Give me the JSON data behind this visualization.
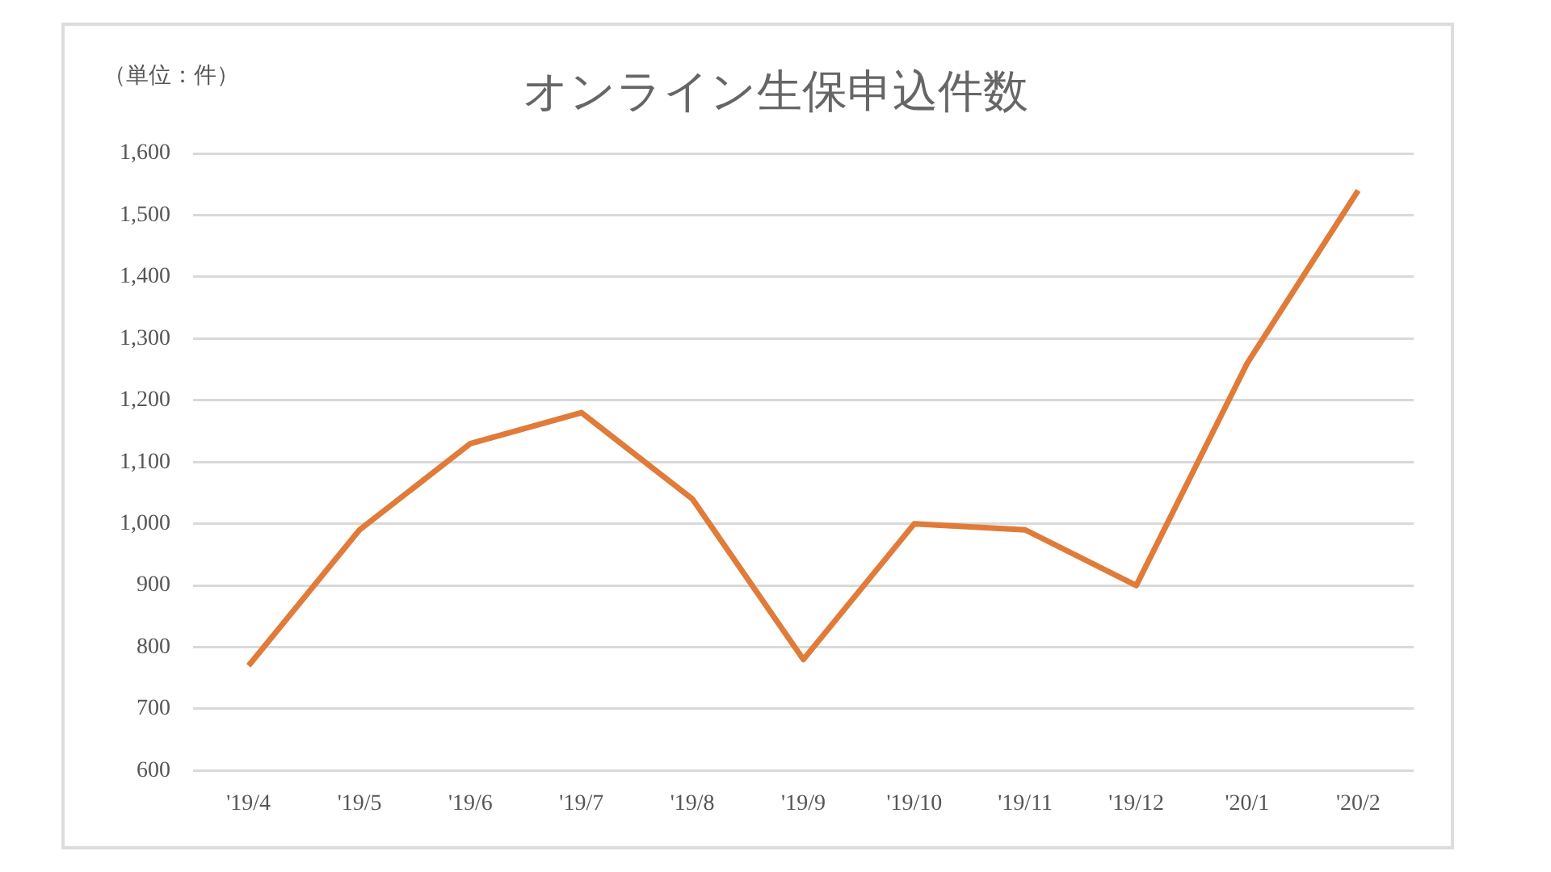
{
  "chart_data": {
    "type": "line",
    "title": "オンライン生保申込件数",
    "ylabel": "（単位：件）",
    "categories": [
      "'19/4",
      "'19/5",
      "'19/6",
      "'19/7",
      "'19/8",
      "'19/9",
      "'19/10",
      "'19/11",
      "'19/12",
      "'20/1",
      "'20/2"
    ],
    "series": [
      {
        "color": "#e07b39",
        "values": [
          770,
          990,
          1130,
          1180,
          1040,
          780,
          1000,
          990,
          900,
          1260,
          1540
        ]
      }
    ],
    "ylim": [
      600,
      1600
    ],
    "yticks": [
      {
        "value": 600,
        "label": "600"
      },
      {
        "value": 700,
        "label": "700"
      },
      {
        "value": 800,
        "label": "800"
      },
      {
        "value": 900,
        "label": "900"
      },
      {
        "value": 1000,
        "label": "1,000"
      },
      {
        "value": 1100,
        "label": "1,100"
      },
      {
        "value": 1200,
        "label": "1,200"
      },
      {
        "value": 1300,
        "label": "1,300"
      },
      {
        "value": 1400,
        "label": "1,400"
      },
      {
        "value": 1500,
        "label": "1,500"
      },
      {
        "value": 1600,
        "label": "1,600"
      }
    ],
    "grid": "y",
    "legend": false,
    "marker": "none",
    "line_style": "solid"
  }
}
